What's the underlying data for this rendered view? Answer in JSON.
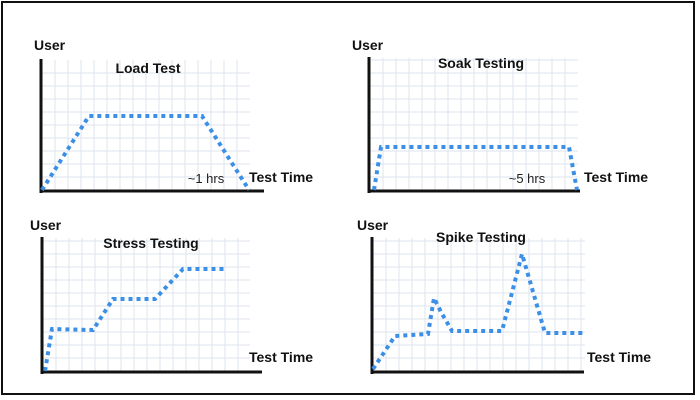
{
  "colors": {
    "axis": "#111111",
    "grid": "#dde3ec",
    "line": "#3b8fe6"
  },
  "panels": [
    {
      "id": "load-test",
      "title": "Load Test",
      "y_axis_label": "User",
      "x_axis_label": "Test Time",
      "duration_label": "~1 hrs"
    },
    {
      "id": "soak-testing",
      "title": "Soak Testing",
      "y_axis_label": "User",
      "x_axis_label": "Test Time",
      "duration_label": "~5 hrs"
    },
    {
      "id": "stress-testing",
      "title": "Stress Testing",
      "y_axis_label": "User",
      "x_axis_label": "Test Time",
      "duration_label": ""
    },
    {
      "id": "spike-testing",
      "title": "Spike Testing",
      "y_axis_label": "User",
      "x_axis_label": "Test Time",
      "duration_label": ""
    }
  ]
}
